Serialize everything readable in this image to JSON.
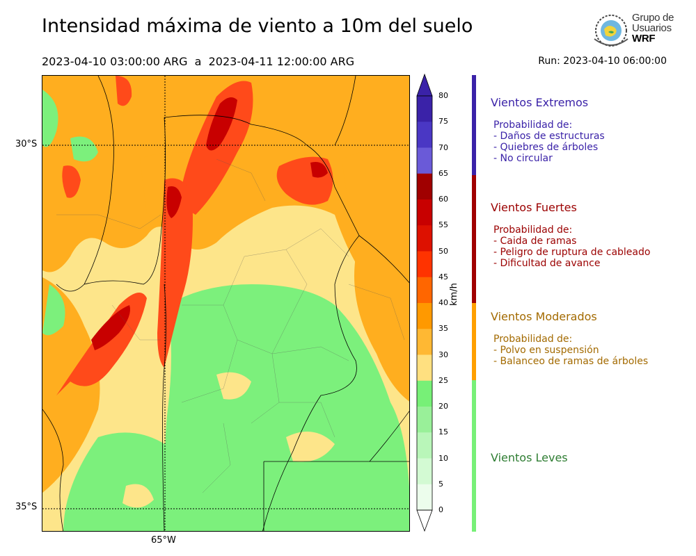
{
  "header": {
    "title": "Intensidad máxima de viento a 10m del suelo",
    "period": "2023-04-10 03:00:00 ARG  a  2023-04-11 12:00:00 ARG",
    "run": "Run: 2023-04-10 06:00:00"
  },
  "logo": {
    "line1": "Grupo de",
    "line2": "Usuarios",
    "line3": "WRF"
  },
  "map": {
    "lat_labels": [
      "30°S",
      "35°S"
    ],
    "lon_labels": [
      "65°W"
    ]
  },
  "colorbar": {
    "unit": "km/h",
    "ticks": [
      "80",
      "75",
      "70",
      "65",
      "60",
      "55",
      "50",
      "45",
      "40",
      "35",
      "30",
      "25",
      "20",
      "15",
      "10",
      "5",
      "0"
    ],
    "colors": [
      "#3a22a8",
      "#4a37c4",
      "#6a5ad8",
      "#a00000",
      "#c80000",
      "#dd1100",
      "#ff3300",
      "#ff6600",
      "#ff9900",
      "#ffb833",
      "#ffe080",
      "#77f077",
      "#99f099",
      "#b9f6b9",
      "#d3fad3",
      "#ecfdec"
    ]
  },
  "categories": [
    {
      "name": "Vientos Extremos",
      "color": "#3a22a8",
      "subtitle": "Probabilidad de:",
      "items": [
        "- Daños de estructuras",
        "- Quiebres de árboles",
        "- No circular"
      ]
    },
    {
      "name": "Vientos Fuertes",
      "color": "#9b0000",
      "subtitle": "Probabilidad de:",
      "items": [
        "- Caida de ramas",
        "- Peligro de ruptura de cableado",
        "- Dificultad de avance"
      ]
    },
    {
      "name": "Vientos Moderados",
      "color": "#a36a00",
      "subtitle": "Probabilidad de:",
      "items": [
        "- Polvo en suspensión",
        "- Balanceo de ramas de árboles"
      ]
    },
    {
      "name": "Vientos Leves",
      "color": "#2e7d32",
      "subtitle": "",
      "items": []
    }
  ]
}
